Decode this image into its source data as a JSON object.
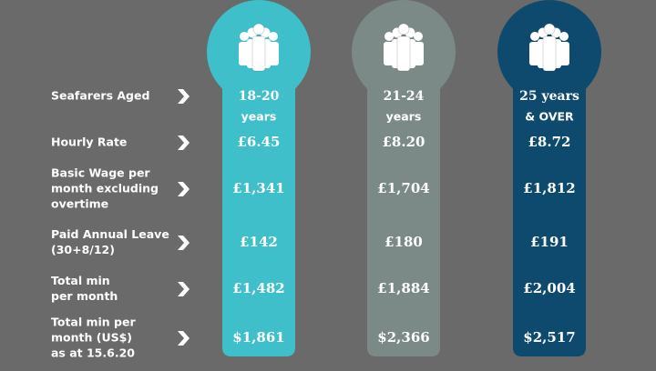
{
  "row_labels": [
    [
      "Seafarers Aged"
    ],
    [
      "Hourly Rate"
    ],
    [
      "Basic Wage per",
      "month excluding",
      "overtime"
    ],
    [
      "Paid Annual Leave",
      "(30+8/12)"
    ],
    [
      "Total min",
      "per month"
    ],
    [
      "Total min per",
      "month (US$)",
      "as at 15.6.20"
    ]
  ],
  "columns": [
    {
      "header": [
        "18-20",
        "years"
      ],
      "values": [
        "£6.45",
        "£1,341",
        "£142",
        "£1,482",
        "$1,861"
      ]
    },
    {
      "header": [
        "21-24",
        "years"
      ],
      "values": [
        "£8.20",
        "£1,704",
        "£180",
        "£1,884",
        "$2,366"
      ]
    },
    {
      "header": [
        "25 years",
        "& OVER"
      ],
      "values": [
        "£8.72",
        "£1,812",
        "£191",
        "£2,004",
        "$2,517"
      ]
    }
  ]
}
